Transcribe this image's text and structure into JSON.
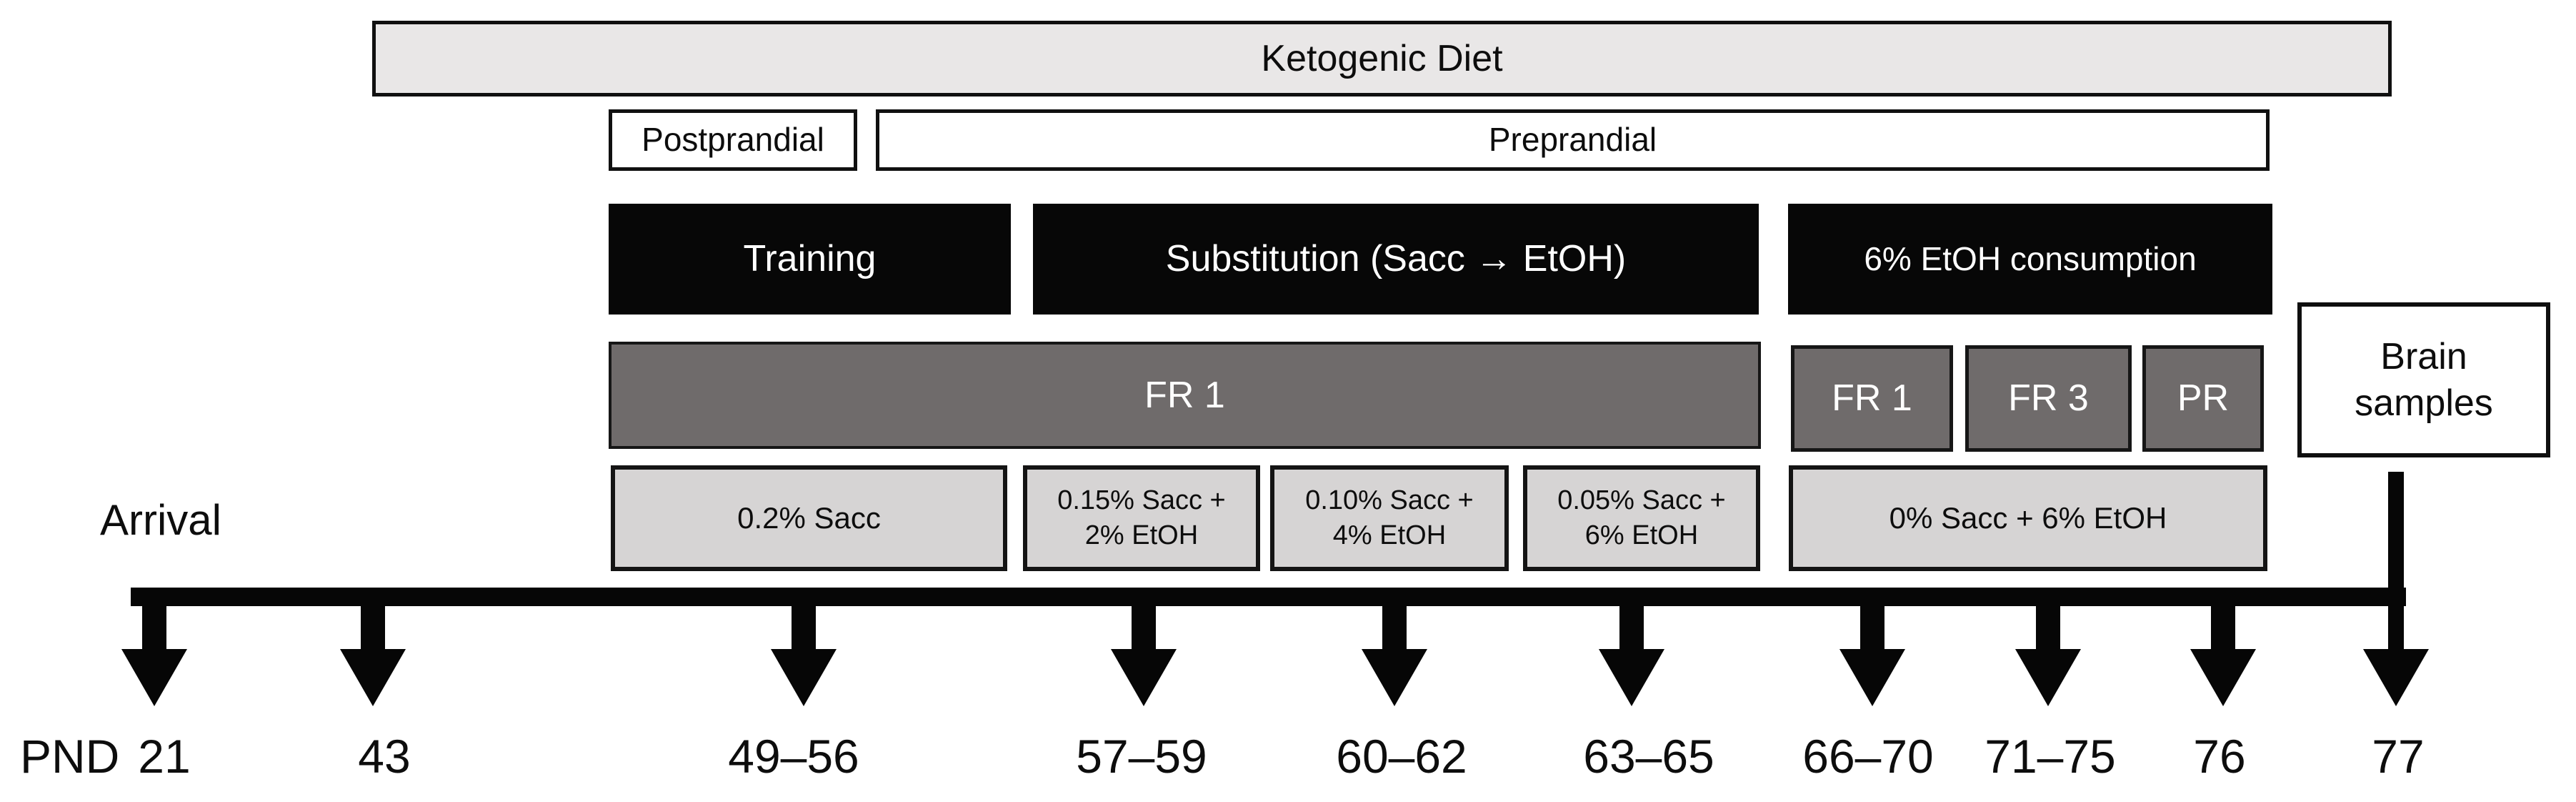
{
  "diagram": {
    "diet_bar": "Ketogenic Diet",
    "feeding": {
      "postprandial": "Postprandial",
      "preprandial": "Preprandial"
    },
    "phases": {
      "training": "Training",
      "substitution": "Substitution (Sacc → EtOH)",
      "etoh_consumption": "6% EtOH consumption"
    },
    "reinforcement_schedules": {
      "fr1_main": "FR 1",
      "fr1": "FR 1",
      "fr3": "FR 3",
      "pr": "PR"
    },
    "brain_samples": [
      "Brain",
      "samples"
    ],
    "solutions": {
      "s1": "0.2% Sacc",
      "s2": [
        "0.15% Sacc +",
        "2% EtOH"
      ],
      "s3": [
        "0.10% Sacc +",
        "4% EtOH"
      ],
      "s4": [
        "0.05% Sacc +",
        "6% EtOH"
      ],
      "s5": "0% Sacc + 6% EtOH"
    },
    "arrival": "Arrival",
    "timeline": {
      "axis_prefix": "PND",
      "events": [
        "21",
        "43",
        "49–56",
        "57–59",
        "60–62",
        "63–65",
        "66–70",
        "71–75",
        "76",
        "77"
      ]
    },
    "colors": {
      "light_gray_bar": "#e9e7e7",
      "light_gray_box": "#d6d4d4",
      "dark_gray_box": "#6f6b6b",
      "black_box": "#070707"
    }
  }
}
